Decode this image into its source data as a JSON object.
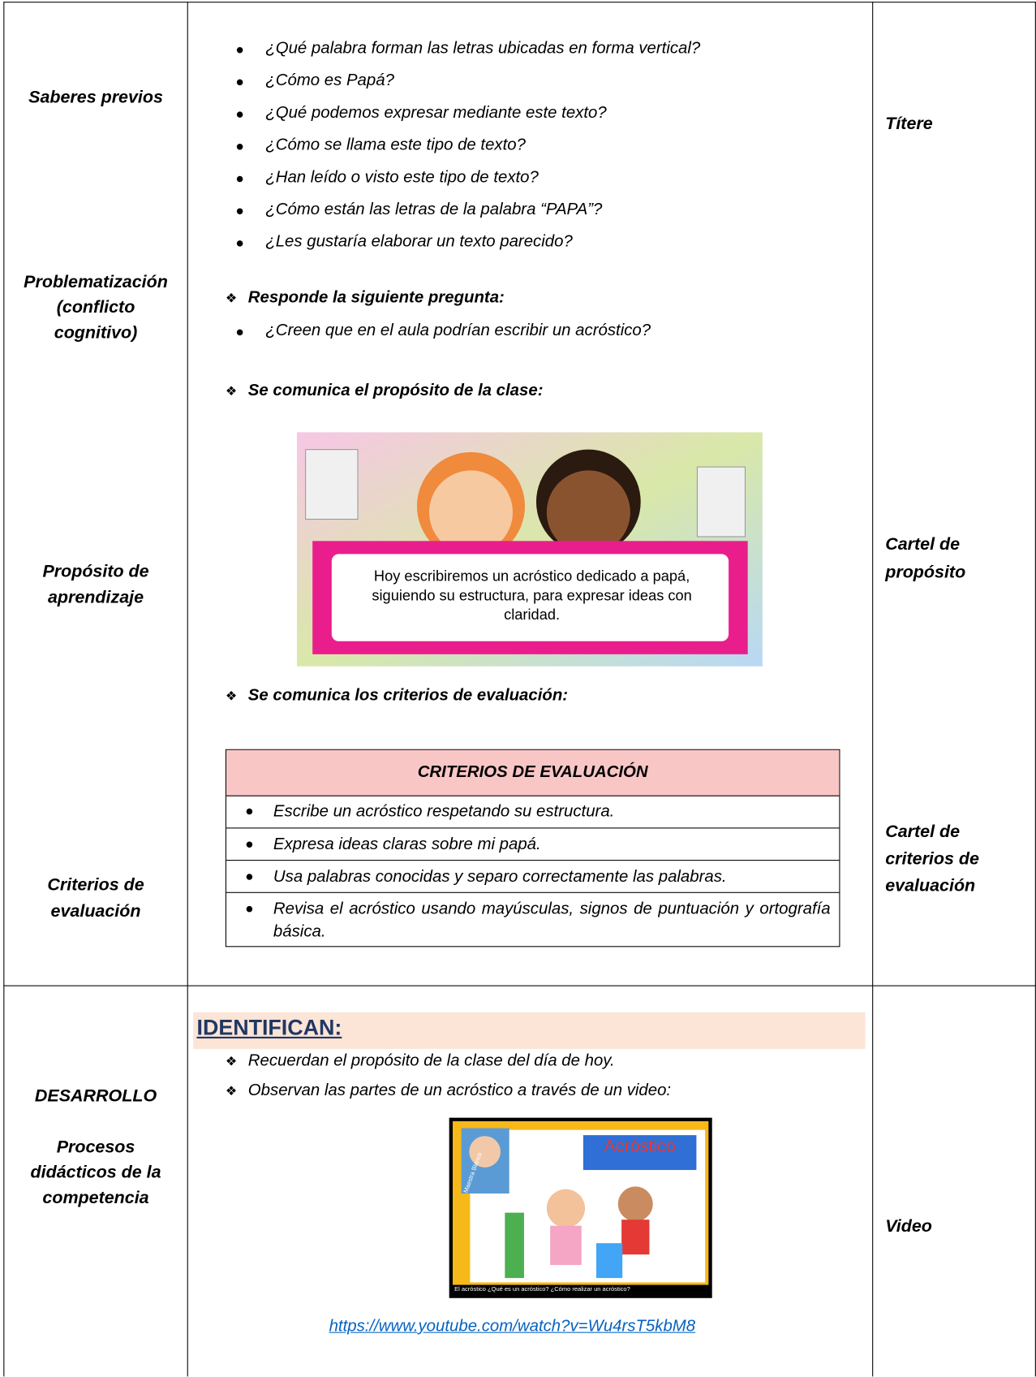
{
  "row1": {
    "left": [
      "Saberes previos",
      "Problematización (conflicto cognitivo)",
      "Propósito de aprendizaje",
      "Criterios de evaluación"
    ],
    "right": [
      "Títere",
      "Cartel de propósito",
      "Cartel de criterios de evaluación"
    ],
    "middle": {
      "questions": [
        "¿Qué palabra forman las letras ubicadas en forma vertical?",
        "¿Cómo es Papá?",
        "¿Qué podemos expresar mediante este texto?",
        "¿Cómo se llama este tipo de texto?",
        "¿Han leído o visto este tipo de texto?",
        " ¿Cómo están las letras de la palabra “PAPA”?",
        "¿Les gustaría elaborar un texto parecido?"
      ],
      "prompt": "Responde la siguiente pregunta:",
      "prompt_question": "¿Creen que en el aula podrían escribir un acróstico?",
      "purpose_intro": "Se comunica el propósito de la clase:",
      "banner_text": "Hoy escribiremos un acróstico dedicado a papá, siguiendo su estructura, para expresar ideas con claridad.",
      "criteria_intro": "Se comunica los criterios de evaluación:",
      "criteria": {
        "header": "CRITERIOS DE EVALUACIÓN",
        "items": [
          "Escribe un acróstico respetando su estructura.",
          "Expresa ideas claras sobre mi papá.",
          "Usa palabras conocidas y separo correctamente las palabras.",
          "Revisa el acróstico usando mayúsculas, signos de puntuación y ortografía básica."
        ]
      }
    }
  },
  "row2": {
    "left": [
      "DESARROLLO",
      "Procesos didácticos de la competencia"
    ],
    "right": [
      "Video"
    ],
    "middle": {
      "heading": "IDENTIFICAN:",
      "steps": [
        "Recuerdan el propósito de la clase del día de hoy.",
        "Observan las partes de un acróstico a través de un video:"
      ],
      "video": {
        "title": "Acróstico",
        "channel": "Maestra Blanca",
        "caption": "El acróstico ¿Qué es un acróstico? ¿Cómo realizar un acróstico?",
        "link": "https://www.youtube.com/watch?v=Wu4rsT5kbM8"
      }
    }
  }
}
